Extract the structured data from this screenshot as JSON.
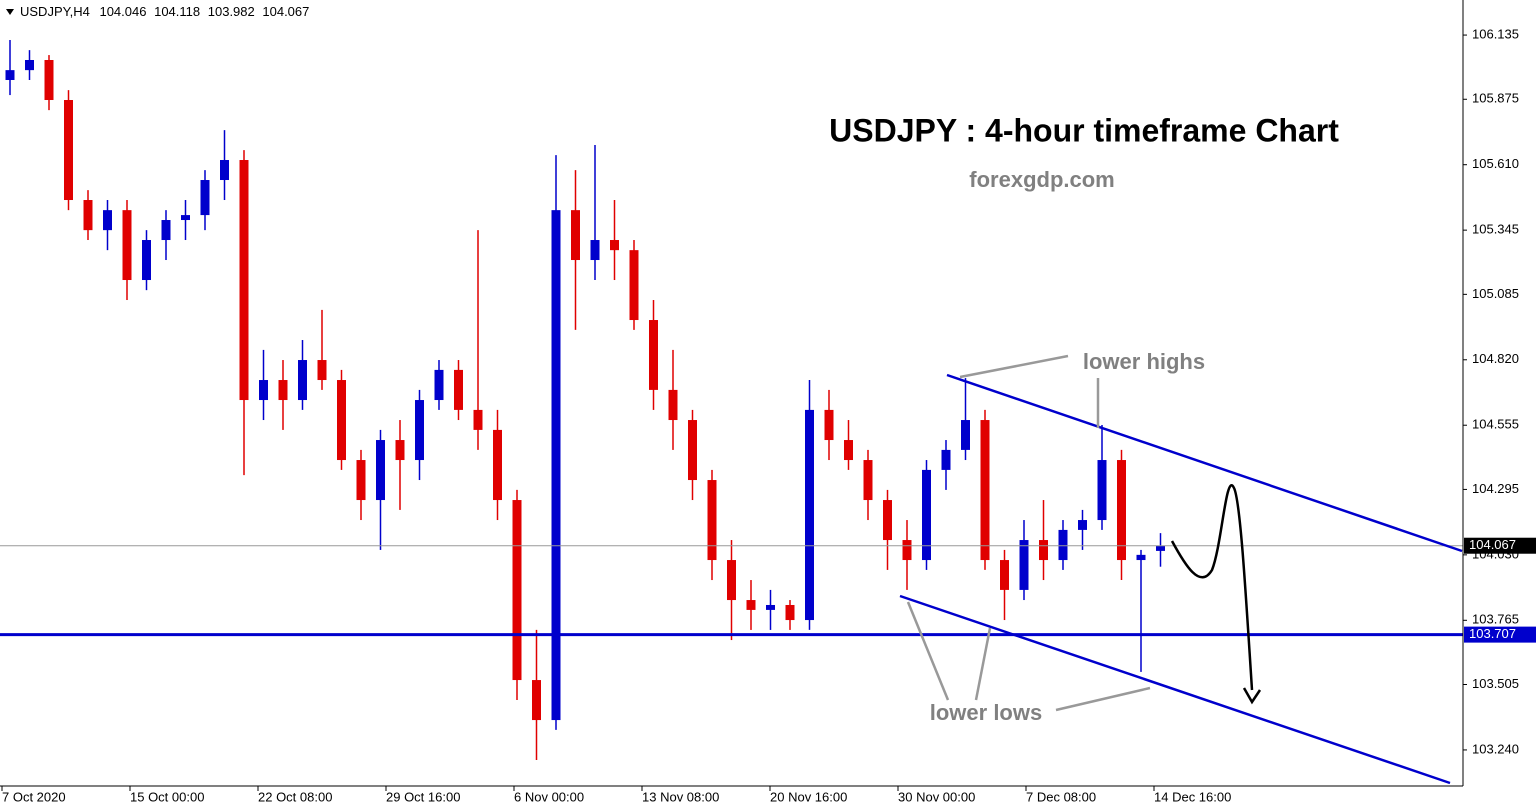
{
  "chart_data": {
    "type": "candlestick",
    "symbol": "USDJPY,H4",
    "title": "USDJPY : 4-hour timeframe Chart",
    "subtitle": "forexgdp.com",
    "annotations": [
      "lower highs",
      "lower lows"
    ],
    "up_color": "#0000cc",
    "down_color": "#e00000",
    "open": [
      105.953,
      105.993,
      106.034,
      105.872,
      105.467,
      105.345,
      105.426,
      105.143,
      105.305,
      105.386,
      105.406,
      105.548,
      105.629,
      104.657,
      104.738,
      104.657,
      104.819,
      104.738,
      104.414,
      104.252,
      104.495,
      104.414,
      104.657,
      104.779,
      104.617,
      104.536,
      104.252,
      103.523,
      103.361,
      105.426,
      105.224,
      105.305,
      105.264,
      104.981,
      104.698,
      104.576,
      104.333,
      104.009,
      103.847,
      103.807,
      103.827,
      103.766,
      104.617,
      104.495,
      104.414,
      104.252,
      104.09,
      104.009,
      104.374,
      104.455,
      104.576,
      104.009,
      103.888,
      104.09,
      104.009,
      104.131,
      104.171,
      104.414,
      104.009,
      104.046
    ],
    "high": [
      106.115,
      106.074,
      106.054,
      105.912,
      105.507,
      105.467,
      105.467,
      105.345,
      105.426,
      105.467,
      105.588,
      105.75,
      105.669,
      104.86,
      104.819,
      104.9,
      105.022,
      104.779,
      104.455,
      104.536,
      104.576,
      104.698,
      104.819,
      104.819,
      105.345,
      104.617,
      104.293,
      103.726,
      105.649,
      105.588,
      105.69,
      105.467,
      105.305,
      105.062,
      104.86,
      104.617,
      104.374,
      104.09,
      103.928,
      103.888,
      103.847,
      104.738,
      104.698,
      104.576,
      104.455,
      104.293,
      104.171,
      104.414,
      104.495,
      104.746,
      104.617,
      104.05,
      104.171,
      104.252,
      104.171,
      104.212,
      104.556,
      104.455,
      104.05,
      104.118
    ],
    "low": [
      105.892,
      105.953,
      105.831,
      105.426,
      105.305,
      105.264,
      105.062,
      105.102,
      105.224,
      105.305,
      105.345,
      105.467,
      104.353,
      104.576,
      104.536,
      104.617,
      104.698,
      104.374,
      104.171,
      104.05,
      104.212,
      104.333,
      104.617,
      104.576,
      104.455,
      104.171,
      103.442,
      103.199,
      103.321,
      104.941,
      105.143,
      105.143,
      104.941,
      104.617,
      104.455,
      104.252,
      103.928,
      103.685,
      103.726,
      103.726,
      103.726,
      103.726,
      104.414,
      104.374,
      104.171,
      103.969,
      103.888,
      103.969,
      104.293,
      104.414,
      103.969,
      103.766,
      103.847,
      103.928,
      103.969,
      104.05,
      104.131,
      103.928,
      103.556,
      103.982
    ],
    "close": [
      105.993,
      106.034,
      105.872,
      105.467,
      105.345,
      105.426,
      105.143,
      105.305,
      105.386,
      105.406,
      105.548,
      105.629,
      104.657,
      104.738,
      104.657,
      104.819,
      104.738,
      104.414,
      104.252,
      104.495,
      104.414,
      104.657,
      104.779,
      104.617,
      104.536,
      104.252,
      103.523,
      103.361,
      105.426,
      105.224,
      105.305,
      105.264,
      104.981,
      104.698,
      104.576,
      104.333,
      104.009,
      103.847,
      103.807,
      103.827,
      103.766,
      104.617,
      104.495,
      104.414,
      104.252,
      104.09,
      104.009,
      104.374,
      104.455,
      104.576,
      104.009,
      103.888,
      104.09,
      104.009,
      104.131,
      104.171,
      104.414,
      104.009,
      104.03,
      104.067
    ],
    "hline": {
      "value": 103.707,
      "color": "#0000cc"
    },
    "ylim": [
      103.098,
      106.277
    ],
    "yticks": [
      106.135,
      105.875,
      {
        "value": 105.61,
        "label": "105.610"
      },
      105.345,
      105.085,
      {
        "value": 104.82,
        "label": "104.820"
      },
      104.555,
      104.295,
      {
        "value": 104.03,
        "label": "104.030"
      },
      103.765,
      103.505,
      {
        "value": 103.24,
        "label": "103.240"
      }
    ],
    "xtick_labels": [
      "7 Oct 2020",
      "15 Oct 00:00",
      "22 Oct 08:00",
      "29 Oct 16:00",
      "6 Nov 00:00",
      "13 Nov 08:00",
      "20 Nov 16:00",
      "30 Nov 00:00",
      "7 Dec 08:00",
      "14 Dec 16:00"
    ]
  }
}
